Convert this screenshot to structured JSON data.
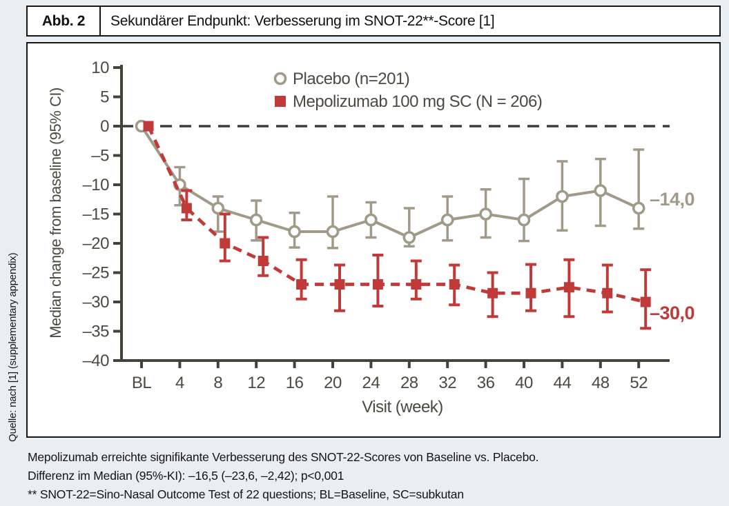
{
  "page": {
    "figure_label": "Abb. 2",
    "title": "Sekundärer Endpunkt: Verbesserung im SNOT-22**-Score [1]",
    "source_note": "Quelle: nach [1] (supplementary appendix)",
    "caption_lines": [
      "Mepolizumab erreichte signifikante Verbesserung des SNOT-22-Scores von Baseline vs. Placebo.",
      "Differenz im Median (95%-KI): –16,5 (–23,6, –2,42); p<0,001",
      "** SNOT-22=Sino-Nasal Outcome Test of 22 questions; BL=Baseline, SC=subkutan"
    ]
  },
  "colors": {
    "background": "#e9eef3",
    "box_border": "#161616",
    "axis": "#454239",
    "tick_text": "#4d4940",
    "zero_line": "#3b3b38",
    "placebo": "#a29a88",
    "mepolizumab": "#bf3a38"
  },
  "chart_data": {
    "type": "line",
    "title": "",
    "xlabel": "Visit (week)",
    "ylabel": "Median change from baseline (95% CI)",
    "x_tick_labels": [
      "BL",
      "4",
      "8",
      "12",
      "16",
      "20",
      "24",
      "28",
      "32",
      "36",
      "40",
      "44",
      "48",
      "52"
    ],
    "y_ticks": [
      10,
      5,
      0,
      -5,
      -10,
      -15,
      -20,
      -25,
      -30,
      -35,
      -40
    ],
    "y_tick_labels": [
      "10",
      "5",
      "0",
      "–5",
      "–10",
      "–15",
      "–20",
      "–25",
      "–30",
      "–35",
      "–40"
    ],
    "ylim": [
      -40,
      10
    ],
    "zero_reference_line": true,
    "grid": false,
    "legend_position": "top-center",
    "series": [
      {
        "name": "Placebo (n=201)",
        "marker": "open-circle",
        "line_style": "solid",
        "color": "#a29a88",
        "values": [
          0,
          -10,
          -14,
          -16,
          -18,
          -18,
          -16,
          -19,
          -16,
          -15,
          -16,
          -12,
          -11,
          -14
        ],
        "ci_high": [
          null,
          -7,
          -12,
          -12.7,
          -14.8,
          -12,
          -13,
          -14,
          -12,
          -10.8,
          -9,
          -6,
          -5.6,
          -4
        ],
        "ci_low": [
          null,
          -13.5,
          -18,
          -19.5,
          -20.7,
          -20.8,
          -19,
          -20.5,
          -19.5,
          -19,
          -19.6,
          -17.8,
          -17,
          -17.5
        ],
        "end_label": "–14,0"
      },
      {
        "name": "Mepolizumab 100 mg SC (N = 206)",
        "marker": "filled-square",
        "line_style": "dashed",
        "color": "#bf3a38",
        "values": [
          0,
          -14,
          -20,
          -23,
          -27,
          -27,
          -27,
          -27,
          -27,
          -28.5,
          -28.5,
          -27.5,
          -28.5,
          -30
        ],
        "ci_high": [
          null,
          -11,
          -15,
          -19,
          -22.8,
          -23.7,
          -22,
          -23,
          -23.7,
          -25,
          -23.6,
          -22.8,
          -23.7,
          -24.5
        ],
        "ci_low": [
          null,
          -16,
          -23,
          -25.5,
          -29.5,
          -31.5,
          -30.7,
          -29.5,
          -30.5,
          -32.5,
          -31.5,
          -32.5,
          -31.7,
          -34.5
        ],
        "end_label": "–30,0"
      }
    ]
  }
}
